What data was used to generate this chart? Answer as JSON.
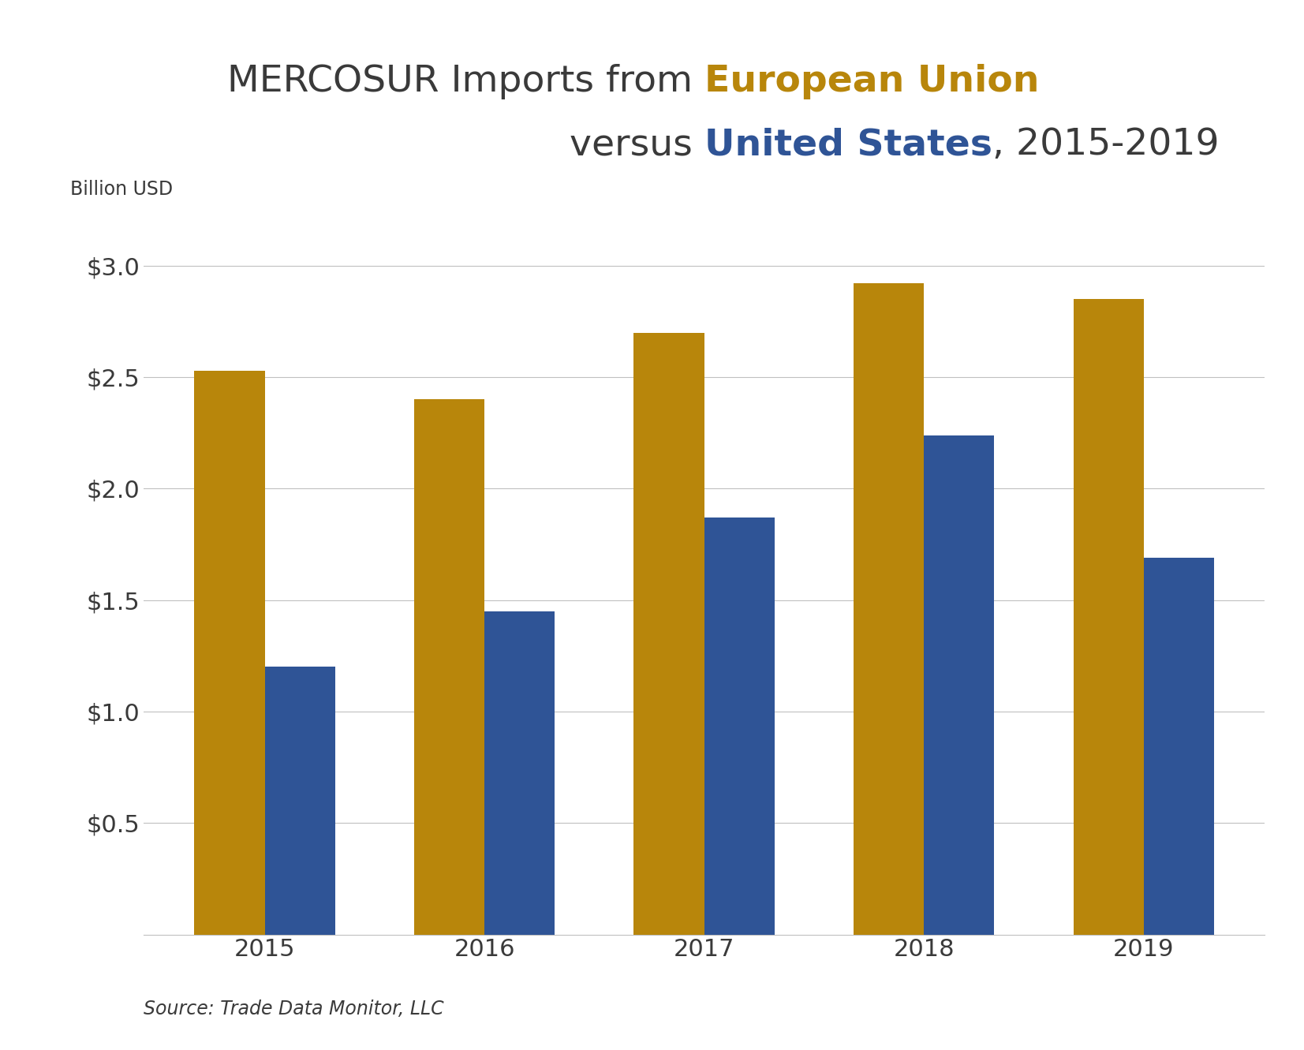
{
  "years": [
    "2015",
    "2016",
    "2017",
    "2018",
    "2019"
  ],
  "eu_values": [
    2.53,
    2.4,
    2.7,
    2.92,
    2.85
  ],
  "us_values": [
    1.2,
    1.45,
    1.87,
    2.24,
    1.69
  ],
  "eu_color": "#B8860B",
  "us_color": "#2F5496",
  "text_color": "#3a3a3a",
  "ylabel": "Billion USD",
  "yticks": [
    0.5,
    1.0,
    1.5,
    2.0,
    2.5,
    3.0
  ],
  "ytick_labels": [
    "$0.5",
    "$1.0",
    "$1.5",
    "$2.0",
    "$2.5",
    "$3.0"
  ],
  "ylim": [
    0,
    3.25
  ],
  "source_text": "Source: Trade Data Monitor, LLC",
  "background_color": "#ffffff",
  "grid_color": "#c0c0c0",
  "bar_width": 0.32,
  "title_fontsize": 34,
  "axis_label_fontsize": 17,
  "tick_fontsize": 22,
  "source_fontsize": 17
}
